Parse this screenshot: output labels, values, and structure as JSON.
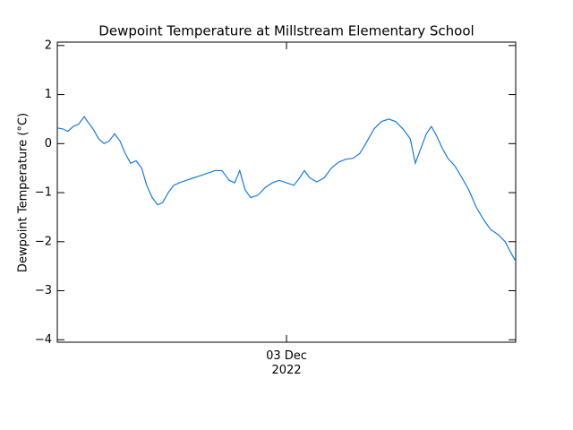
{
  "chart_data": {
    "type": "line",
    "title": "Dewpoint Temperature at Millstream Elementary School",
    "ylabel": "Dewpoint Temperature (°C)",
    "xlim": [
      2.5,
      3.5
    ],
    "xticks": [
      {
        "value": 3.0,
        "label": "03 Dec 2022"
      }
    ],
    "ylim": [
      -4.05,
      2.07
    ],
    "yticks": [
      {
        "value": -4,
        "label": "−4"
      },
      {
        "value": -3,
        "label": "−3"
      },
      {
        "value": -2,
        "label": "−2"
      },
      {
        "value": -1,
        "label": "−1"
      },
      0,
      1,
      2
    ],
    "x": [
      2.5,
      2.512,
      2.523,
      2.535,
      2.547,
      2.559,
      2.566,
      2.578,
      2.59,
      2.602,
      2.613,
      2.625,
      2.637,
      2.648,
      2.66,
      2.672,
      2.684,
      2.695,
      2.707,
      2.719,
      2.73,
      2.742,
      2.754,
      2.766,
      2.781,
      2.797,
      2.813,
      2.828,
      2.844,
      2.859,
      2.875,
      2.887,
      2.898,
      2.91,
      2.922,
      2.938,
      2.953,
      2.969,
      2.984,
      3.0,
      3.016,
      3.027,
      3.039,
      3.051,
      3.066,
      3.082,
      3.098,
      3.113,
      3.129,
      3.145,
      3.16,
      3.176,
      3.191,
      3.207,
      3.223,
      3.238,
      3.254,
      3.27,
      3.281,
      3.293,
      3.305,
      3.316,
      3.328,
      3.34,
      3.352,
      3.367,
      3.383,
      3.398,
      3.414,
      3.43,
      3.445,
      3.461,
      3.477,
      3.488,
      3.5
    ],
    "series": [
      {
        "color": "#1a7ad6",
        "values": [
          0.32,
          0.3,
          0.25,
          0.35,
          0.4,
          0.55,
          0.45,
          0.3,
          0.1,
          0.0,
          0.05,
          0.2,
          0.05,
          -0.2,
          -0.4,
          -0.35,
          -0.5,
          -0.85,
          -1.1,
          -1.25,
          -1.2,
          -1.0,
          -0.85,
          -0.8,
          -0.75,
          -0.7,
          -0.65,
          -0.6,
          -0.55,
          -0.55,
          -0.75,
          -0.8,
          -0.55,
          -0.95,
          -1.1,
          -1.05,
          -0.9,
          -0.8,
          -0.75,
          -0.8,
          -0.85,
          -0.72,
          -0.55,
          -0.7,
          -0.78,
          -0.7,
          -0.5,
          -0.38,
          -0.32,
          -0.3,
          -0.2,
          0.05,
          0.3,
          0.45,
          0.5,
          0.45,
          0.3,
          0.1,
          -0.4,
          -0.1,
          0.2,
          0.35,
          0.15,
          -0.1,
          -0.3,
          -0.45,
          -0.7,
          -0.95,
          -1.3,
          -1.55,
          -1.75,
          -1.85,
          -2.0,
          -2.2,
          -2.4
        ]
      }
    ]
  }
}
